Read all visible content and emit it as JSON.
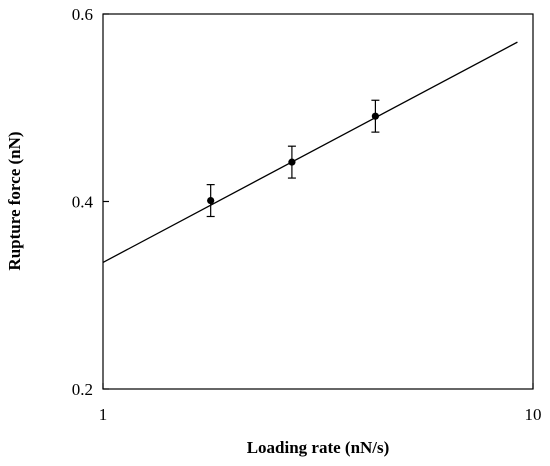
{
  "chart_data": {
    "type": "scatter",
    "xlabel": "Loading rate (nN/s)",
    "ylabel": "Rupture force (nN)",
    "xscale": "log",
    "xlim": [
      1,
      10
    ],
    "ylim": [
      0.2,
      0.6
    ],
    "x_ticks": [
      "1",
      "10"
    ],
    "y_ticks": [
      "0.2",
      "0.4",
      "0.6"
    ],
    "grid": false,
    "legend": "none",
    "colors": {
      "marker": "#000000",
      "line": "#000000",
      "axis": "#000000"
    },
    "series": [
      {
        "type": "scatter",
        "x": [
          1.78,
          2.75,
          4.3
        ],
        "y": [
          0.401,
          0.442,
          0.491
        ],
        "error": [
          0.017,
          0.017,
          0.017
        ]
      },
      {
        "type": "line",
        "x": [
          1,
          9.2
        ],
        "y": [
          0.335,
          0.57
        ]
      }
    ]
  }
}
